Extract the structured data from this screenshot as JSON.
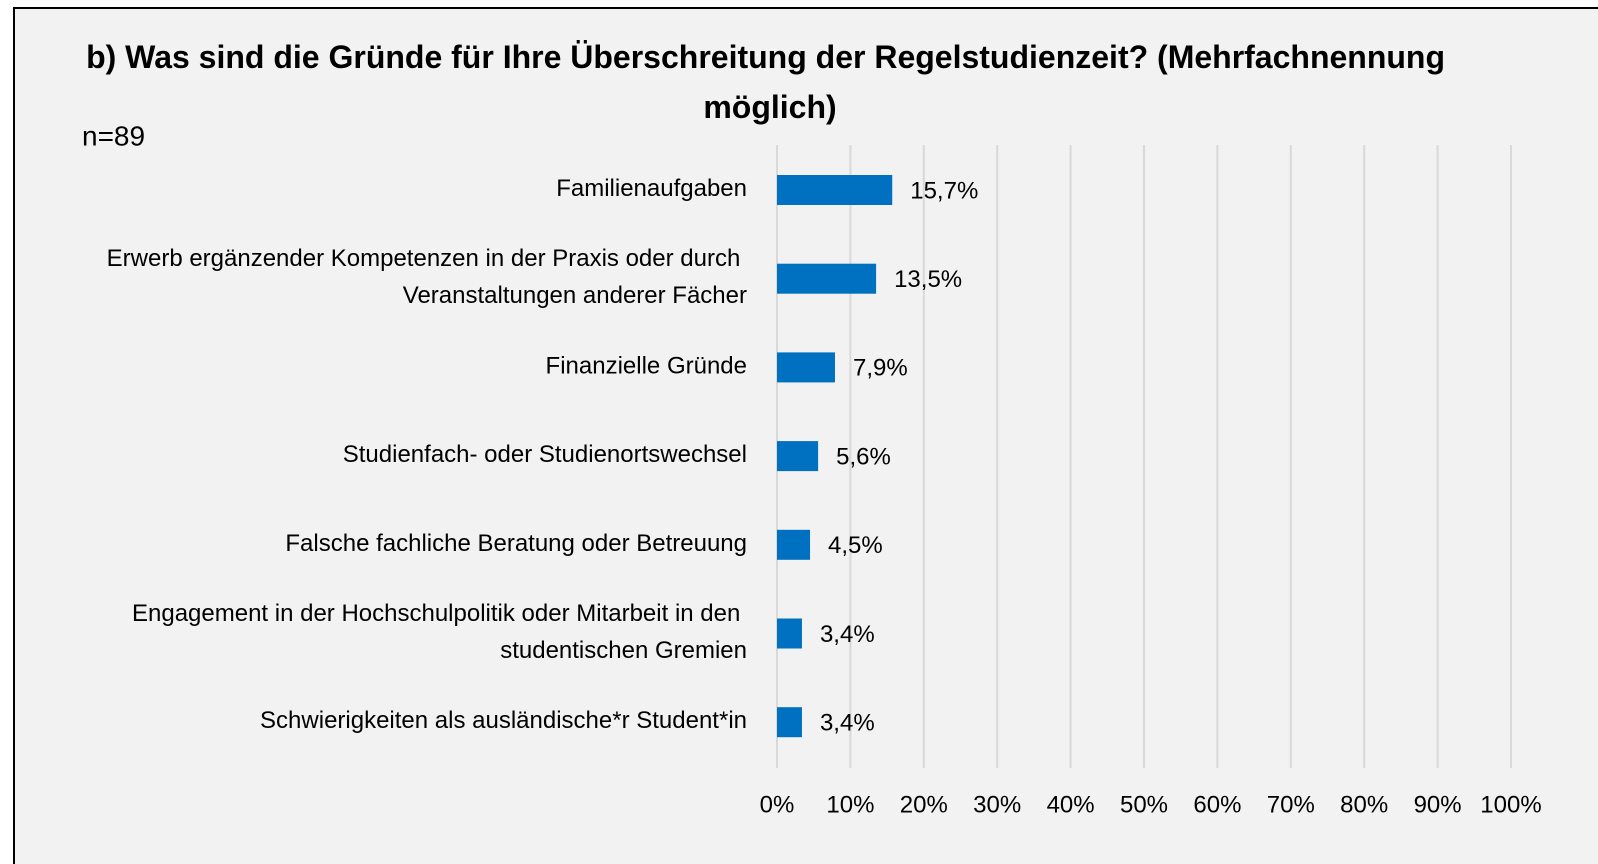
{
  "chart_data": {
    "type": "bar",
    "orientation": "horizontal",
    "title": "b) Was sind die Gründe für Ihre Überschreitung der Regelstudienzeit? (Mehrfachnennung möglich)",
    "annotation": "n=89",
    "categories": [
      "Familienaufgaben",
      "Erwerb ergänzender Kompetenzen in der Praxis oder durch Veranstaltungen anderer Fächer",
      "Finanzielle Gründe",
      "Studienfach- oder Studienortswechsel",
      "Falsche fachliche Beratung oder Betreuung",
      "Engagement in der Hochschulpolitik oder Mitarbeit in den studentischen Gremien",
      "Schwierigkeiten als ausländische*r Student*in"
    ],
    "values": [
      15.7,
      13.5,
      7.9,
      5.6,
      4.5,
      3.4,
      3.4
    ],
    "value_labels": [
      "15,7%",
      "13,5%",
      "7,9%",
      "5,6%",
      "4,5%",
      "3,4%",
      "3,4%"
    ],
    "color": "#0070c0",
    "xlim": [
      0,
      100
    ],
    "xticks": [
      {
        "value": 0,
        "label": "0%"
      },
      {
        "value": 10,
        "label": "10%"
      },
      {
        "value": 20,
        "label": "20%"
      },
      {
        "value": 30,
        "label": "30%"
      },
      {
        "value": 40,
        "label": "40%"
      },
      {
        "value": 50,
        "label": "50%"
      },
      {
        "value": 60,
        "label": "60%"
      },
      {
        "value": 70,
        "label": "70%"
      },
      {
        "value": 80,
        "label": "80%"
      },
      {
        "value": 90,
        "label": "90%"
      },
      {
        "value": 100,
        "label": "100%"
      }
    ],
    "grid": true
  }
}
